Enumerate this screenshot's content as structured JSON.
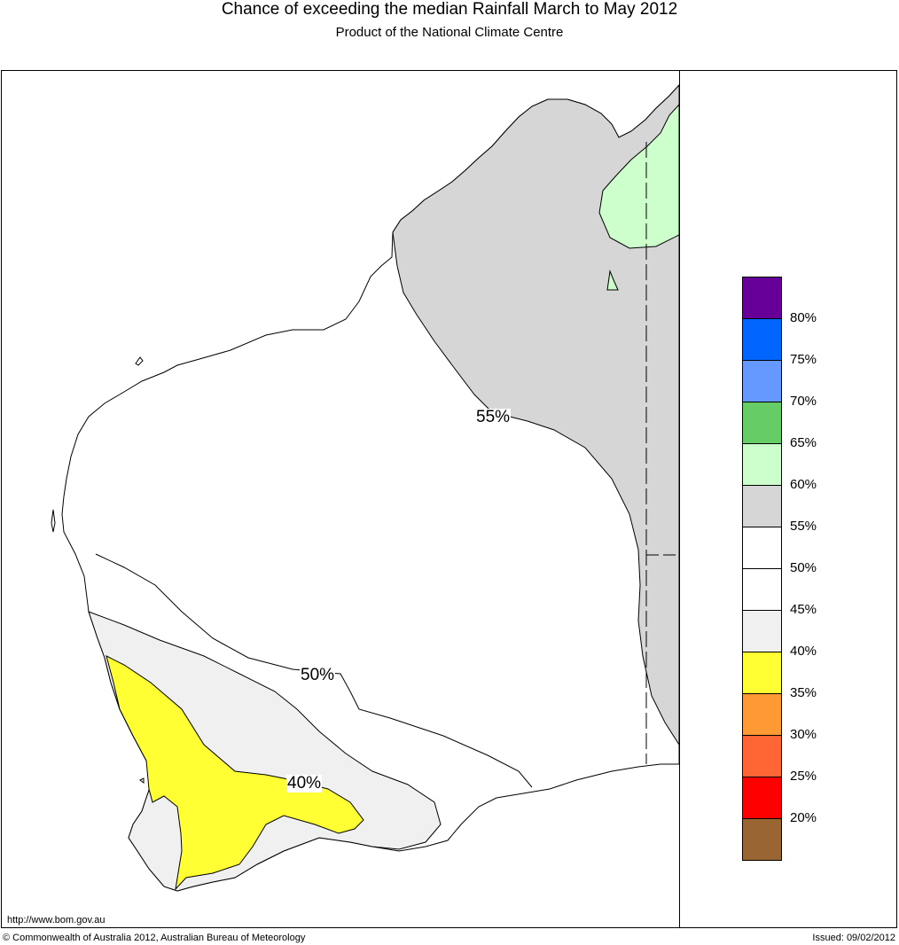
{
  "header": {
    "title": "Chance of exceeding the median Rainfall March to May 2012",
    "subtitle": "Product of the National Climate Centre"
  },
  "map": {
    "region": "Western Australia",
    "contour_labels": [
      "55%",
      "50%",
      "40%"
    ]
  },
  "legend": {
    "colors": [
      "#660099",
      "#0066FF",
      "#6699FF",
      "#66CC66",
      "#CCFFCC",
      "#D6D6D6",
      "#FFFFFF",
      "#FFFFFF",
      "#F0F0F0",
      "#FFFF33",
      "#FF9933",
      "#FF6633",
      "#FF0000",
      "#996633"
    ],
    "tick_labels": [
      "80%",
      "75%",
      "70%",
      "65%",
      "60%",
      "55%",
      "50%",
      "45%",
      "40%",
      "35%",
      "30%",
      "25%",
      "20%"
    ]
  },
  "footer": {
    "url": "http://www.bom.gov.au",
    "copyright": "© Commonwealth of Australia 2012, Australian Bureau of Meteorology",
    "issued": "Issued: 09/02/2012"
  }
}
